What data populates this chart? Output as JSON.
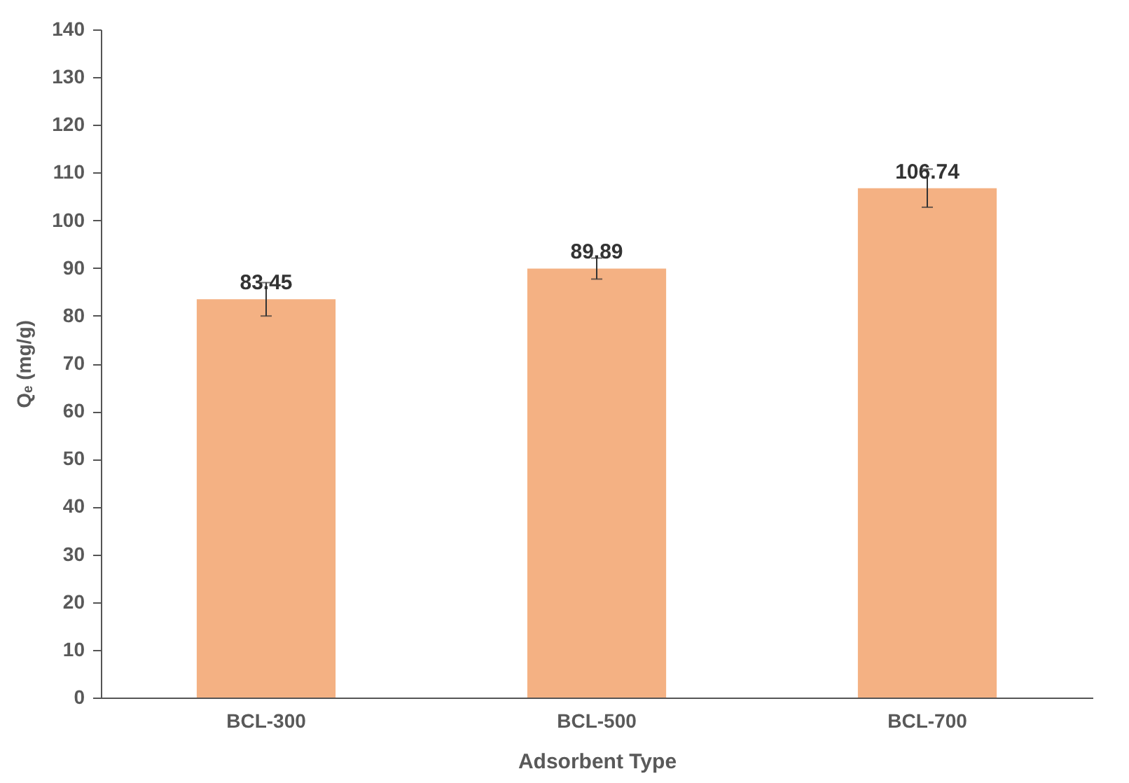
{
  "chart_data": {
    "type": "bar",
    "xlabel": "Adsorbent Type",
    "ylabel": "Qₑ (mg/g)",
    "categories": [
      "BCL-300",
      "BCL-500",
      "BCL-700"
    ],
    "values": [
      83.45,
      89.89,
      106.74
    ],
    "errors": [
      3.5,
      2.2,
      4
    ],
    "color": "#f4b183",
    "data_labels": true,
    "ylim": [
      0,
      140
    ],
    "yticks": [
      0,
      10,
      20,
      30,
      40,
      50,
      60,
      70,
      80,
      90,
      100,
      110,
      120,
      130,
      140
    ],
    "grid": false
  }
}
